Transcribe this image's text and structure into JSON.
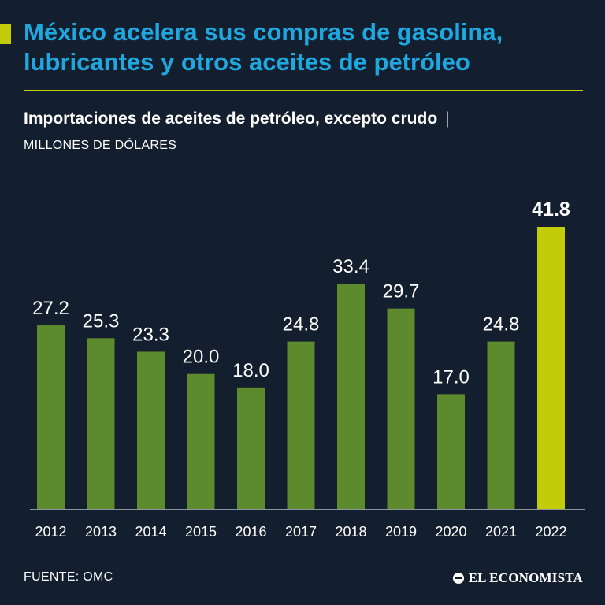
{
  "headline": {
    "line1": "México acelera sus compras de gasolina,",
    "line2": "lubricantes y otros aceites de petróleo"
  },
  "subtitle": "Importaciones de aceites de petróleo, excepto crudo",
  "subtitle_separator": "|",
  "unit": "MILLONES DE DÓLARES",
  "source": "FUENTE: OMC",
  "brand": "EL ECONOMISTA",
  "colors": {
    "background": "#131e2e",
    "headline": "#1fa8df",
    "accent": "#c3cc08",
    "bar": "#5e8a2e",
    "bar_highlight": "#c3cc08",
    "text": "#ffffff"
  },
  "chart_data": {
    "type": "bar",
    "categories": [
      "2012",
      "2013",
      "2014",
      "2015",
      "2016",
      "2017",
      "2018",
      "2019",
      "2020",
      "2021",
      "2022"
    ],
    "values": [
      27.2,
      25.3,
      23.3,
      20.0,
      18.0,
      24.8,
      33.4,
      29.7,
      17.0,
      24.8,
      41.8
    ],
    "labels": [
      "27.2",
      "25.3",
      "23.3",
      "20.0",
      "18.0",
      "24.8",
      "33.4",
      "29.7",
      "17.0",
      "24.8",
      "41.8"
    ],
    "highlight_index": 10,
    "ylim": [
      0,
      41.8
    ],
    "grid": false,
    "legend": "none"
  }
}
